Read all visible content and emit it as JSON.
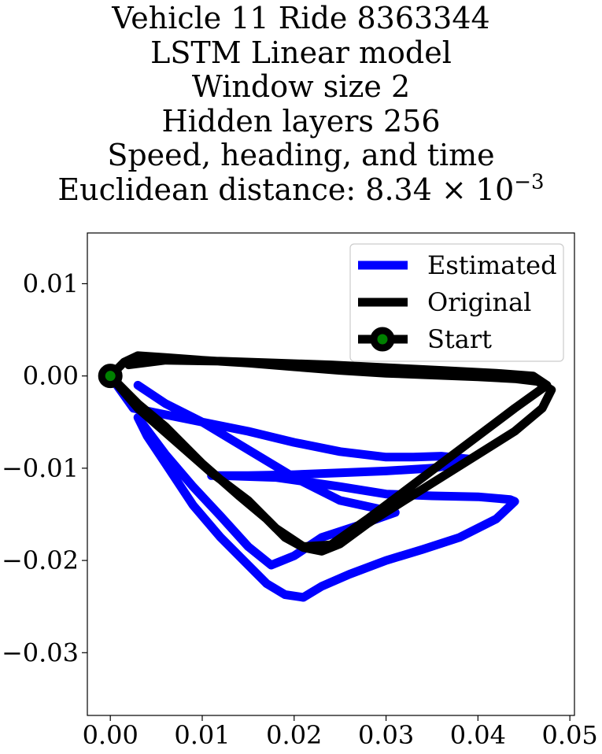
{
  "chart_data": {
    "type": "line",
    "title": {
      "lines": [
        "Vehicle 11 Ride 8363344",
        "LSTM Linear model",
        "Window size 2",
        "Hidden layers 256",
        "Speed, heading, and time"
      ],
      "metric_prefix": "Euclidean distance: 8.34",
      "metric_mantissa_sep": " × 10",
      "metric_exponent": "−3"
    },
    "xlabel": "",
    "ylabel": "",
    "xlim": [
      -0.0025,
      0.0505
    ],
    "ylim": [
      -0.0368,
      0.0155
    ],
    "x_ticks": [
      0.0,
      0.01,
      0.02,
      0.03,
      0.04,
      0.05
    ],
    "x_tick_labels": [
      "0.00",
      "0.01",
      "0.02",
      "0.03",
      "0.04",
      "0.05"
    ],
    "y_ticks": [
      0.01,
      0.0,
      -0.01,
      -0.02,
      -0.03
    ],
    "y_tick_labels": [
      "0.01",
      "0.00",
      "−0.01",
      "−0.02",
      "−0.03"
    ],
    "grid": false,
    "legend_position": "top-right",
    "series": [
      {
        "name": "Estimated",
        "color": "#0000ff",
        "x": [
          0.0,
          0.0025,
          0.006,
          0.01,
          0.015,
          0.02,
          0.025,
          0.03,
          0.033,
          0.036,
          0.039,
          0.038,
          0.035,
          0.03,
          0.025,
          0.02,
          0.015,
          0.011,
          0.012,
          0.018,
          0.025,
          0.03,
          0.035,
          0.04,
          0.0435,
          0.044,
          0.042,
          0.038,
          0.034,
          0.03,
          0.026,
          0.023,
          0.021,
          0.019,
          0.017,
          0.015,
          0.012,
          0.009,
          0.006,
          0.004,
          0.003,
          0.0045,
          0.006,
          0.009,
          0.012,
          0.015,
          0.0175,
          0.02,
          0.023,
          0.027,
          0.031,
          0.025,
          0.02,
          0.015,
          0.01,
          0.006,
          0.003
        ],
        "y": [
          0.0,
          -0.0035,
          -0.0042,
          -0.005,
          -0.006,
          -0.0072,
          -0.0082,
          -0.0088,
          -0.0088,
          -0.0087,
          -0.009,
          -0.0095,
          -0.01,
          -0.0103,
          -0.0105,
          -0.0107,
          -0.0108,
          -0.0108,
          -0.0108,
          -0.011,
          -0.012,
          -0.0128,
          -0.013,
          -0.0131,
          -0.0134,
          -0.0136,
          -0.0155,
          -0.0175,
          -0.0188,
          -0.02,
          -0.0215,
          -0.0228,
          -0.024,
          -0.0237,
          -0.0225,
          -0.0205,
          -0.0175,
          -0.014,
          -0.0095,
          -0.0065,
          -0.0045,
          -0.0065,
          -0.0085,
          -0.012,
          -0.0152,
          -0.0185,
          -0.0205,
          -0.0195,
          -0.0175,
          -0.0162,
          -0.0148,
          -0.0135,
          -0.011,
          -0.008,
          -0.005,
          -0.003,
          -0.001
        ]
      },
      {
        "name": "Original",
        "color": "#000000",
        "x": [
          0.0,
          0.0015,
          0.003,
          0.006,
          0.01,
          0.015,
          0.02,
          0.025,
          0.03,
          0.035,
          0.04,
          0.044,
          0.0465,
          0.048,
          0.047,
          0.044,
          0.04,
          0.036,
          0.032,
          0.028,
          0.025,
          0.023,
          0.021,
          0.019,
          0.017,
          0.014,
          0.01,
          0.006,
          0.003,
          0.001,
          0.0,
          0.003,
          0.007,
          0.011,
          0.015,
          0.018,
          0.021,
          0.024,
          0.028,
          0.032,
          0.036,
          0.04,
          0.044,
          0.0475,
          0.046,
          0.042,
          0.036,
          0.03,
          0.024,
          0.018,
          0.012,
          0.006,
          0.002
        ],
        "y": [
          0.0,
          0.0015,
          0.0022,
          0.002,
          0.0017,
          0.0014,
          0.001,
          0.0006,
          0.0003,
          0.0001,
          -0.0001,
          -0.0003,
          -0.0006,
          -0.0015,
          -0.0035,
          -0.006,
          -0.0085,
          -0.011,
          -0.0135,
          -0.016,
          -0.0182,
          -0.019,
          -0.0186,
          -0.0175,
          -0.0155,
          -0.013,
          -0.0095,
          -0.0055,
          -0.003,
          -0.001,
          0.0,
          -0.0035,
          -0.007,
          -0.0105,
          -0.0135,
          -0.0165,
          -0.0185,
          -0.0183,
          -0.0155,
          -0.0125,
          -0.0095,
          -0.0065,
          -0.0035,
          -0.001,
          0.0,
          0.0003,
          0.0006,
          0.0009,
          0.0012,
          0.0014,
          0.0016,
          0.0017,
          0.0012
        ]
      },
      {
        "name": "Start",
        "color": "#000000",
        "marker_face": "#008000",
        "x": [
          0.0
        ],
        "y": [
          0.0
        ]
      }
    ]
  }
}
